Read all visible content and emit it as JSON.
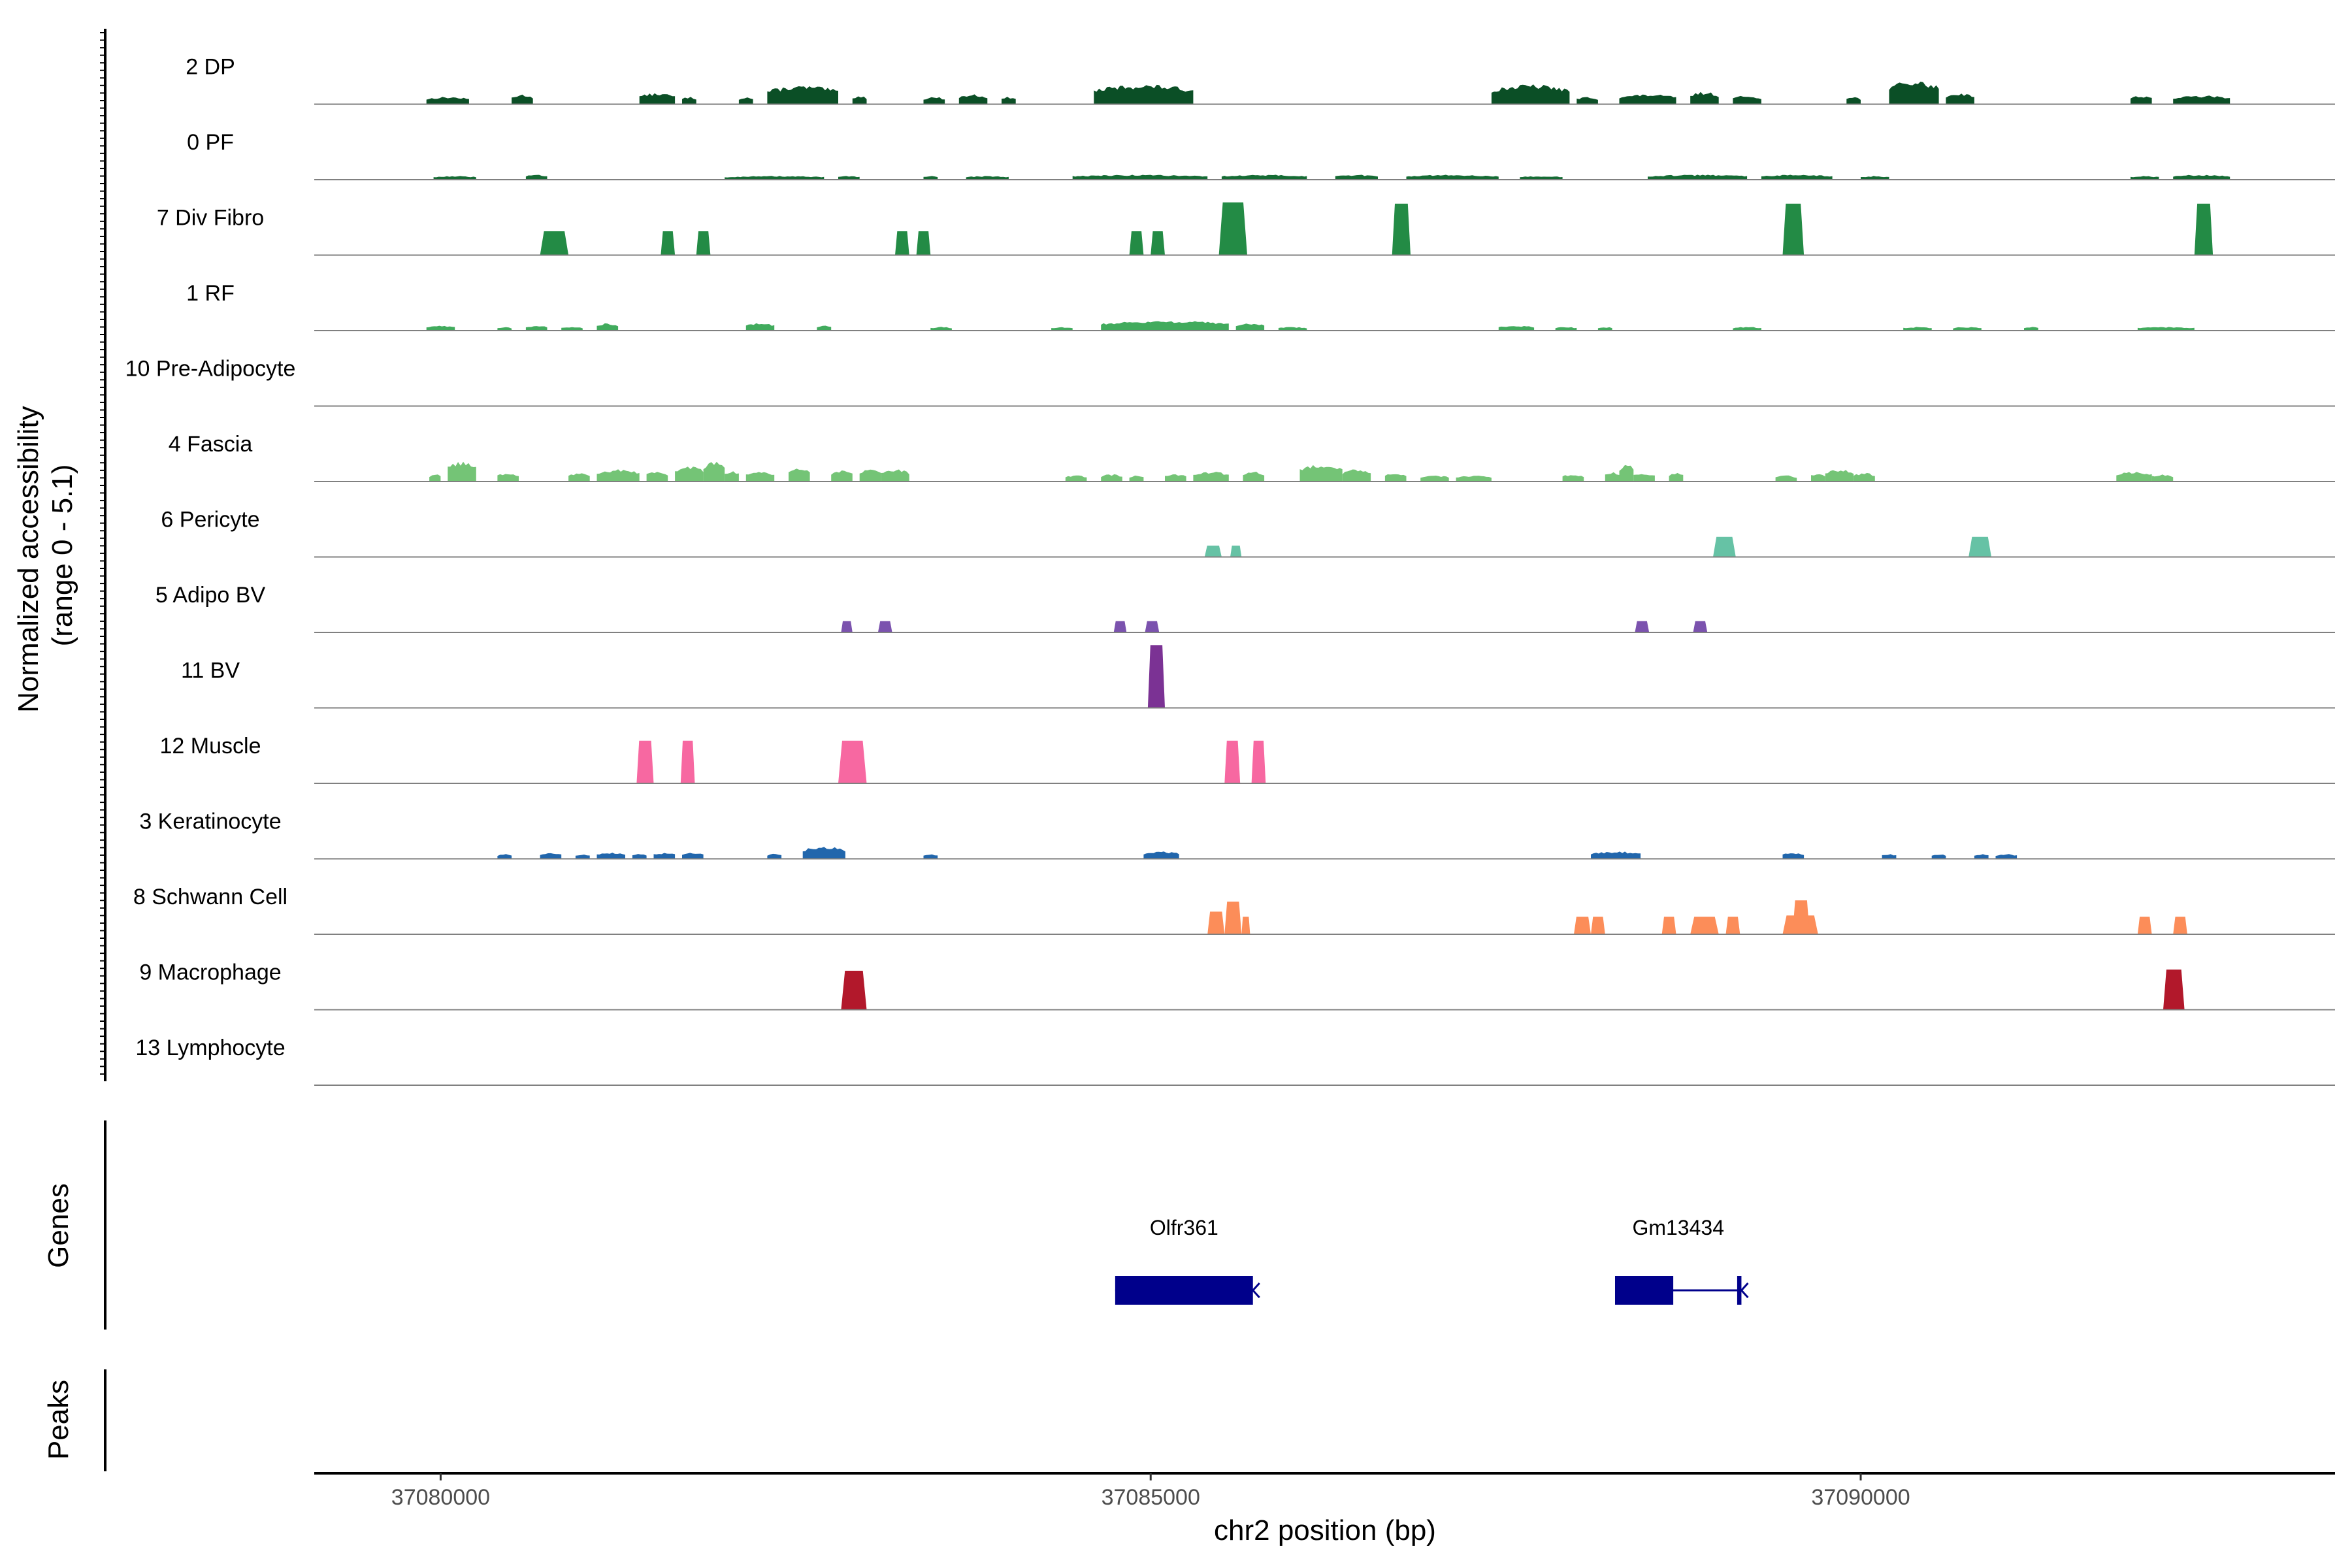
{
  "chart_data": {
    "type": "coverage",
    "title": "",
    "xlabel": "chr2 position (bp)",
    "ylabel": [
      "Normalized accessibility",
      "(range 0 - 5.1)"
    ],
    "y_range": [
      0,
      5.1
    ],
    "xlim": [
      37079110,
      37093340
    ],
    "x_ticks": [
      37080000,
      37085000,
      37090000
    ],
    "tracks": [
      {
        "name": "2 DP",
        "color": "#0b4f26",
        "style": "noisy",
        "peaks": [
          [
            37079900,
            37080200,
            0.6
          ],
          [
            37080500,
            37080650,
            0.8
          ],
          [
            37081400,
            37081650,
            0.9
          ],
          [
            37081700,
            37081800,
            0.6
          ],
          [
            37082100,
            37082200,
            0.6
          ],
          [
            37082300,
            37082800,
            1.5
          ],
          [
            37082900,
            37083000,
            0.7
          ],
          [
            37083400,
            37083550,
            0.6
          ],
          [
            37083650,
            37083850,
            0.8
          ],
          [
            37083950,
            37084050,
            0.6
          ],
          [
            37084600,
            37085300,
            1.6
          ],
          [
            37087400,
            37087950,
            1.6
          ],
          [
            37088000,
            37088150,
            0.6
          ],
          [
            37088300,
            37088700,
            0.8
          ],
          [
            37088800,
            37089000,
            1.0
          ],
          [
            37089100,
            37089300,
            0.7
          ],
          [
            37089900,
            37090000,
            0.6
          ],
          [
            37090200,
            37090550,
            1.9
          ],
          [
            37090600,
            37090800,
            0.9
          ],
          [
            37091900,
            37092050,
            0.7
          ],
          [
            37092200,
            37092600,
            0.7
          ]
        ]
      },
      {
        "name": "0 PF",
        "color": "#156b34",
        "style": "noisy",
        "peaks": [
          [
            37079950,
            37080250,
            0.3
          ],
          [
            37080600,
            37080750,
            0.4
          ],
          [
            37082000,
            37082700,
            0.3
          ],
          [
            37082800,
            37082950,
            0.3
          ],
          [
            37083400,
            37083500,
            0.3
          ],
          [
            37083700,
            37084000,
            0.3
          ],
          [
            37084450,
            37085400,
            0.4
          ],
          [
            37085500,
            37086100,
            0.4
          ],
          [
            37086300,
            37086600,
            0.4
          ],
          [
            37086800,
            37087450,
            0.4
          ],
          [
            37087600,
            37087900,
            0.3
          ],
          [
            37088500,
            37089200,
            0.4
          ],
          [
            37089300,
            37089800,
            0.4
          ],
          [
            37090000,
            37090200,
            0.3
          ],
          [
            37091900,
            37092100,
            0.3
          ],
          [
            37092200,
            37092600,
            0.4
          ]
        ]
      },
      {
        "name": "7 Div Fibro",
        "color": "#238b45",
        "style": "block",
        "peaks": [
          [
            37080700,
            37080900,
            1.9
          ],
          [
            37081550,
            37081650,
            1.9
          ],
          [
            37081800,
            37081900,
            1.9
          ],
          [
            37083200,
            37083300,
            1.9
          ],
          [
            37083350,
            37083450,
            1.9
          ],
          [
            37084850,
            37084950,
            1.9
          ],
          [
            37085000,
            37085100,
            1.9
          ],
          [
            37085480,
            37085680,
            4.2
          ],
          [
            37086700,
            37086830,
            4.1
          ],
          [
            37089450,
            37089600,
            4.1
          ],
          [
            37092350,
            37092480,
            4.1
          ]
        ]
      },
      {
        "name": "1 RF",
        "color": "#41ab5d",
        "style": "noisy",
        "peaks": [
          [
            37079900,
            37080100,
            0.4
          ],
          [
            37080400,
            37080500,
            0.3
          ],
          [
            37080600,
            37080750,
            0.4
          ],
          [
            37080850,
            37081000,
            0.3
          ],
          [
            37081100,
            37081250,
            0.6
          ],
          [
            37082150,
            37082350,
            0.6
          ],
          [
            37082650,
            37082750,
            0.4
          ],
          [
            37083450,
            37083600,
            0.3
          ],
          [
            37084300,
            37084450,
            0.3
          ],
          [
            37084650,
            37085550,
            0.8
          ],
          [
            37085600,
            37085800,
            0.6
          ],
          [
            37085900,
            37086100,
            0.3
          ],
          [
            37087450,
            37087700,
            0.4
          ],
          [
            37087850,
            37088000,
            0.3
          ],
          [
            37088150,
            37088250,
            0.3
          ],
          [
            37089100,
            37089300,
            0.3
          ],
          [
            37090300,
            37090500,
            0.3
          ],
          [
            37090650,
            37090850,
            0.3
          ],
          [
            37091150,
            37091250,
            0.3
          ],
          [
            37091950,
            37092350,
            0.3
          ]
        ]
      },
      {
        "name": "10 Pre-Adipocyte",
        "color": "#74c476",
        "style": "noisy",
        "peaks": []
      },
      {
        "name": "4 Fascia",
        "color": "#74c476",
        "style": "noisy",
        "peaks": [
          [
            37079920,
            37080000,
            0.6
          ],
          [
            37080050,
            37080250,
            1.6
          ],
          [
            37080400,
            37080550,
            0.7
          ],
          [
            37080900,
            37081050,
            0.7
          ],
          [
            37081100,
            37081400,
            1.0
          ],
          [
            37081450,
            37081600,
            0.8
          ],
          [
            37081650,
            37081850,
            1.3
          ],
          [
            37081850,
            37082000,
            1.7
          ],
          [
            37082000,
            37082100,
            0.9
          ],
          [
            37082150,
            37082350,
            0.8
          ],
          [
            37082450,
            37082600,
            1.2
          ],
          [
            37082750,
            37082900,
            0.9
          ],
          [
            37082950,
            37083100,
            1.0
          ],
          [
            37083100,
            37083300,
            1.0
          ],
          [
            37084400,
            37084550,
            0.5
          ],
          [
            37084650,
            37084800,
            0.6
          ],
          [
            37084850,
            37084950,
            0.5
          ],
          [
            37085100,
            37085250,
            0.6
          ],
          [
            37085300,
            37085550,
            0.8
          ],
          [
            37085650,
            37085800,
            0.8
          ],
          [
            37086050,
            37086350,
            1.4
          ],
          [
            37086350,
            37086550,
            1.0
          ],
          [
            37086650,
            37086800,
            0.7
          ],
          [
            37086900,
            37087100,
            0.5
          ],
          [
            37087150,
            37087400,
            0.5
          ],
          [
            37087900,
            37088050,
            0.6
          ],
          [
            37088200,
            37088300,
            0.8
          ],
          [
            37088300,
            37088400,
            1.4
          ],
          [
            37088400,
            37088550,
            0.7
          ],
          [
            37088650,
            37088750,
            0.7
          ],
          [
            37089400,
            37089550,
            0.5
          ],
          [
            37089650,
            37089750,
            0.7
          ],
          [
            37089750,
            37089950,
            1.0
          ],
          [
            37089950,
            37090100,
            0.7
          ],
          [
            37091800,
            37092050,
            0.8
          ],
          [
            37092050,
            37092200,
            0.6
          ]
        ]
      },
      {
        "name": "6 Pericyte",
        "color": "#66c2a5",
        "style": "block",
        "peaks": [
          [
            37085380,
            37085500,
            0.9
          ],
          [
            37085560,
            37085640,
            0.9
          ],
          [
            37088960,
            37089120,
            1.6
          ],
          [
            37090760,
            37090920,
            1.6
          ]
        ]
      },
      {
        "name": "5 Adipo BV",
        "color": "#7b52ae",
        "style": "block",
        "peaks": [
          [
            37082820,
            37082900,
            0.9
          ],
          [
            37083080,
            37083180,
            0.9
          ],
          [
            37084740,
            37084830,
            0.9
          ],
          [
            37084960,
            37085060,
            0.9
          ],
          [
            37088410,
            37088510,
            0.9
          ],
          [
            37088820,
            37088920,
            0.9
          ]
        ]
      },
      {
        "name": "11 BV",
        "color": "#7b3294",
        "style": "block",
        "peaks": [
          [
            37084980,
            37085100,
            5.0
          ]
        ]
      },
      {
        "name": "12 Muscle",
        "color": "#f768a1",
        "style": "block",
        "peaks": [
          [
            37081380,
            37081500,
            3.4
          ],
          [
            37081690,
            37081790,
            3.4
          ],
          [
            37082800,
            37083000,
            3.4
          ],
          [
            37085520,
            37085630,
            3.4
          ],
          [
            37085710,
            37085810,
            3.4
          ]
        ]
      },
      {
        "name": "3 Keratinocyte",
        "color": "#2166ac",
        "style": "noisy",
        "peaks": [
          [
            37080400,
            37080500,
            0.4
          ],
          [
            37080700,
            37080850,
            0.5
          ],
          [
            37080950,
            37081050,
            0.4
          ],
          [
            37081100,
            37081300,
            0.5
          ],
          [
            37081350,
            37081450,
            0.4
          ],
          [
            37081500,
            37081650,
            0.5
          ],
          [
            37081700,
            37081850,
            0.5
          ],
          [
            37082300,
            37082400,
            0.4
          ],
          [
            37082550,
            37082850,
            1.0
          ],
          [
            37083400,
            37083500,
            0.4
          ],
          [
            37084950,
            37085200,
            0.6
          ],
          [
            37088100,
            37088450,
            0.6
          ],
          [
            37089450,
            37089600,
            0.5
          ],
          [
            37090150,
            37090250,
            0.4
          ],
          [
            37090500,
            37090600,
            0.4
          ],
          [
            37090800,
            37090900,
            0.4
          ],
          [
            37090950,
            37091100,
            0.4
          ]
        ]
      },
      {
        "name": "8 Schwann Cell",
        "color": "#fc8d59",
        "style": "block",
        "peaks": [
          [
            37085400,
            37085520,
            1.8
          ],
          [
            37085520,
            37085640,
            2.6
          ],
          [
            37085640,
            37085700,
            1.4
          ],
          [
            37087980,
            37088100,
            1.4
          ],
          [
            37088100,
            37088200,
            1.4
          ],
          [
            37088600,
            37088700,
            1.4
          ],
          [
            37088800,
            37089000,
            1.4
          ],
          [
            37089050,
            37089150,
            1.4
          ],
          [
            37089450,
            37089700,
            1.5
          ],
          [
            37089520,
            37089640,
            2.7
          ],
          [
            37091950,
            37092050,
            1.4
          ],
          [
            37092200,
            37092300,
            1.4
          ]
        ]
      },
      {
        "name": "9 Macrophage",
        "color": "#b2182b",
        "style": "block",
        "peaks": [
          [
            37082820,
            37083000,
            3.1
          ],
          [
            37092130,
            37092280,
            3.2
          ]
        ]
      },
      {
        "name": "13 Lymphocyte",
        "color": "#444444",
        "style": "noisy",
        "peaks": []
      }
    ],
    "genes_track_label": "Genes",
    "genes": [
      {
        "name": "Olfr361",
        "strand": "-",
        "exons": [
          [
            37084750,
            37085720
          ]
        ]
      },
      {
        "name": "Gm13434",
        "strand": "-",
        "exons": [
          [
            37088270,
            37088680
          ],
          [
            37089130,
            37089160
          ]
        ]
      }
    ],
    "peaks_track_label": "Peaks"
  }
}
